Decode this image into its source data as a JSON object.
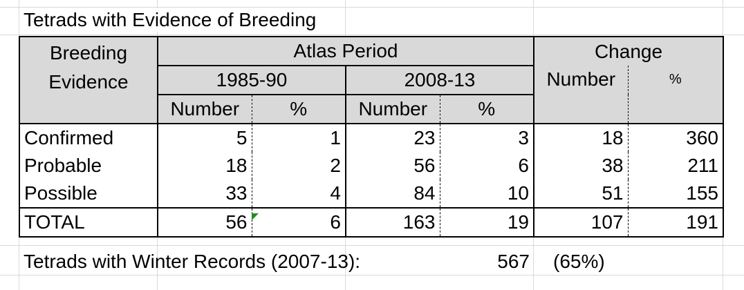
{
  "title": "Tetrads with Evidence of Breeding",
  "header": {
    "breeding_evidence_line1": "Breeding",
    "breeding_evidence_line2": "Evidence",
    "atlas_period": "Atlas Period",
    "change": "Change",
    "period_1": "1985-90",
    "period_2": "2008-13",
    "number": "Number",
    "percent": "%"
  },
  "rows": [
    {
      "label": "Confirmed",
      "p1_number": "5",
      "p1_pct": "1",
      "p2_number": "23",
      "p2_pct": "3",
      "change_number": "18",
      "change_pct": "360"
    },
    {
      "label": "Probable",
      "p1_number": "18",
      "p1_pct": "2",
      "p2_number": "56",
      "p2_pct": "6",
      "change_number": "38",
      "change_pct": "211"
    },
    {
      "label": "Possible",
      "p1_number": "33",
      "p1_pct": "4",
      "p2_number": "84",
      "p2_pct": "10",
      "change_number": "51",
      "change_pct": "155"
    },
    {
      "label": "TOTAL",
      "p1_number": "56",
      "p1_pct": "6",
      "p2_number": "163",
      "p2_pct": "19",
      "change_number": "107",
      "change_pct": "191"
    }
  ],
  "footer": {
    "label": "Tetrads with Winter Records (2007-13):",
    "value": "567",
    "percent": "(65%)"
  }
}
